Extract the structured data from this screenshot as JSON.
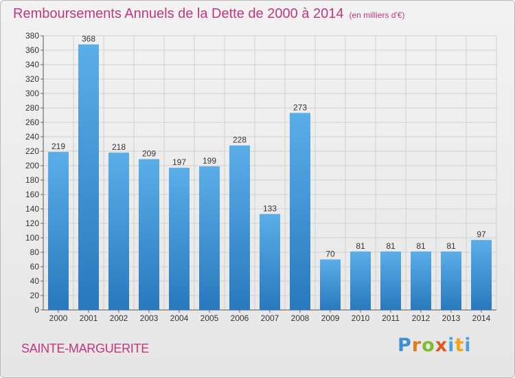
{
  "title": "Remboursements Annuels de la Dette de 2000 à 2014",
  "subtitle": "(en milliers d'€)",
  "city": "SAINTE-MARGUERITE",
  "logo": {
    "text": "Proxiti",
    "parts": [
      "P",
      "r",
      "o",
      "x",
      "i",
      "t",
      "i"
    ]
  },
  "colors": {
    "title": "#c4357e",
    "bar_top": "#5aaee8",
    "bar_bottom": "#2a78bd",
    "grid": "#d0d0d0"
  },
  "chart_data": {
    "type": "bar",
    "categories": [
      "2000",
      "2001",
      "2002",
      "2003",
      "2004",
      "2005",
      "2006",
      "2007",
      "2008",
      "2009",
      "2010",
      "2011",
      "2012",
      "2013",
      "2014"
    ],
    "values": [
      219,
      368,
      218,
      209,
      197,
      199,
      228,
      133,
      273,
      70,
      81,
      81,
      81,
      81,
      97
    ],
    "data_labels": [
      "219",
      "368",
      "218",
      "209",
      "197",
      "199",
      "228",
      "133",
      "273",
      "70",
      "81",
      "81",
      "81",
      "81",
      "97"
    ],
    "ylim": [
      0,
      380
    ],
    "yticks": [
      0,
      20,
      40,
      60,
      80,
      100,
      120,
      140,
      160,
      180,
      200,
      220,
      240,
      260,
      280,
      300,
      320,
      340,
      360,
      380
    ],
    "grid": true,
    "xlabel": "",
    "ylabel": ""
  }
}
